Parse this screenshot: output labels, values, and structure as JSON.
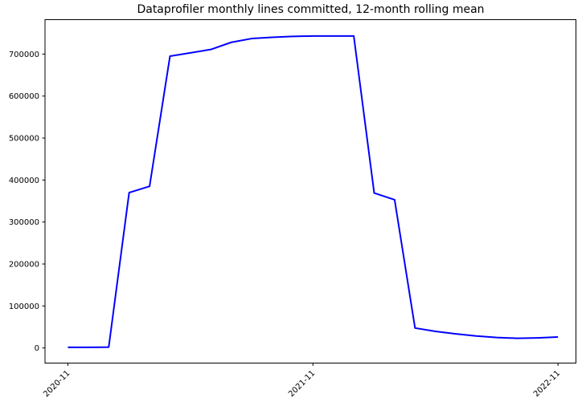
{
  "chart_data": {
    "type": "line",
    "title": "Dataprofiler monthly lines committed, 12-month rolling mean",
    "xlabel": "",
    "ylabel": "",
    "grid": false,
    "legend": "none",
    "line_color": "#0000ff",
    "axis_color": "#000000",
    "background_color": "#ffffff",
    "x": [
      "2020-11",
      "2020-12",
      "2021-01",
      "2021-02",
      "2021-03",
      "2021-04",
      "2021-05",
      "2021-06",
      "2021-07",
      "2021-08",
      "2021-09",
      "2021-10",
      "2021-11",
      "2021-12",
      "2022-01",
      "2022-02",
      "2022-03",
      "2022-04",
      "2022-05",
      "2022-06",
      "2022-07",
      "2022-08",
      "2022-09",
      "2022-10",
      "2022-11"
    ],
    "series": [
      {
        "name": "12-month rolling mean of monthly lines committed",
        "values": [
          1500,
          1500,
          2000,
          370000,
          385000,
          695000,
          703000,
          711000,
          728000,
          737000,
          740000,
          742000,
          743000,
          743000,
          743000,
          369000,
          353000,
          47500,
          39500,
          33500,
          28500,
          25000,
          23000,
          24000,
          26000
        ]
      }
    ],
    "y_axis": {
      "ticks": [
        0,
        100000,
        200000,
        300000,
        400000,
        500000,
        600000,
        700000
      ],
      "ylim": [
        -36000,
        782000
      ]
    },
    "x_axis": {
      "ticks": [
        {
          "index": 0,
          "label": "2020-11"
        },
        {
          "index": 12,
          "label": "2021-11"
        },
        {
          "index": 24,
          "label": "2022-11"
        }
      ],
      "xlim_index": [
        -1.12,
        24.88
      ],
      "tick_label_rotation_deg": 45
    }
  }
}
